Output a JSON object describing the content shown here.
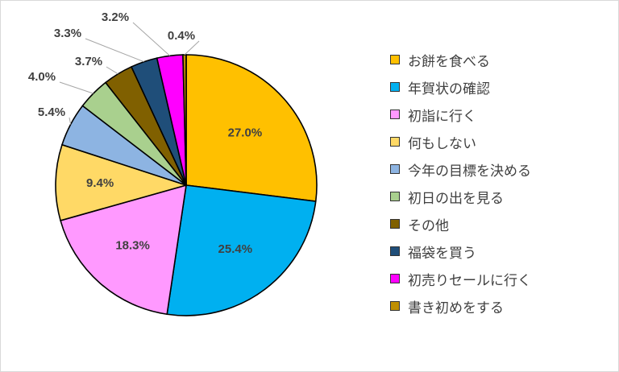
{
  "chart_data": {
    "type": "pie",
    "title": "",
    "legend_position": "right",
    "categories": [
      "お餅を食べる",
      "年賀状の確認",
      "初詣に行く",
      "何もしない",
      "今年の目標を決める",
      "初日の出を見る",
      "その他",
      "福袋を買う",
      "初売りセールに行く",
      "書き初めをする"
    ],
    "values": [
      27.0,
      25.4,
      18.3,
      9.4,
      5.4,
      4.0,
      3.7,
      3.3,
      3.2,
      0.4
    ],
    "labels": [
      "27.0%",
      "25.4%",
      "18.3%",
      "9.4%",
      "5.4%",
      "4.0%",
      "3.7%",
      "3.3%",
      "3.2%",
      "0.4%"
    ],
    "colors": [
      "#FFC000",
      "#00B0F0",
      "#FF99FF",
      "#FFD966",
      "#8DB4E2",
      "#A9D08E",
      "#806000",
      "#1F4E79",
      "#FF00FF",
      "#BF8F00"
    ]
  }
}
